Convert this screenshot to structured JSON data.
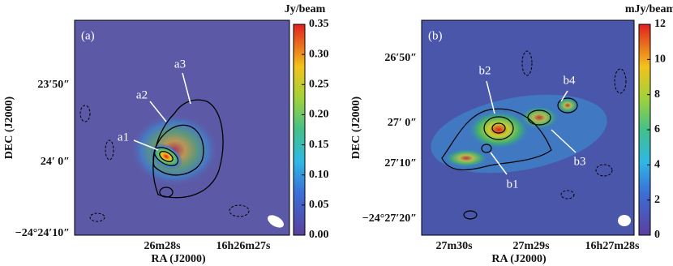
{
  "chart_data": [
    {
      "type": "heatmap",
      "title": "(a)",
      "colorbar_label": "Jy/beam",
      "clim": [
        0,
        0.35
      ],
      "cticks": [
        {
          "value": 0,
          "label": "0.00"
        },
        {
          "value": 0.05,
          "label": "0.05"
        },
        {
          "value": 0.1,
          "label": "0.10"
        },
        {
          "value": 0.15,
          "label": "0.15"
        },
        {
          "value": 0.2,
          "label": "0.20"
        },
        {
          "value": 0.25,
          "label": "0.25"
        },
        {
          "value": 0.3,
          "label": "0.30"
        },
        {
          "value": 0.35,
          "label": "0.35"
        }
      ],
      "x_label": "RA (J2000)",
      "y_label": "DEC (J2000)",
      "xticks": [
        "26m28s",
        "16h26m27s"
      ],
      "yticks": [
        "23′50″",
        "24′ 0″",
        "−24°24′10″"
      ],
      "annotations": [
        "a1",
        "a2",
        "a3"
      ]
    },
    {
      "type": "heatmap",
      "title": "(b)",
      "colorbar_label": "mJy/beam",
      "clim": [
        0,
        12
      ],
      "cticks": [
        0,
        2,
        4,
        6,
        8,
        10,
        12
      ],
      "x_label": "RA (J2000)",
      "y_label": "DEC (J2000)",
      "xticks": [
        "27m30s",
        "27m29s",
        "16h27m28s"
      ],
      "yticks": [
        "26′50″",
        "27′ 0″",
        "27′10″",
        "−24°27′20″"
      ],
      "annotations": [
        "b2",
        "b4",
        "b1",
        "b3"
      ]
    }
  ]
}
